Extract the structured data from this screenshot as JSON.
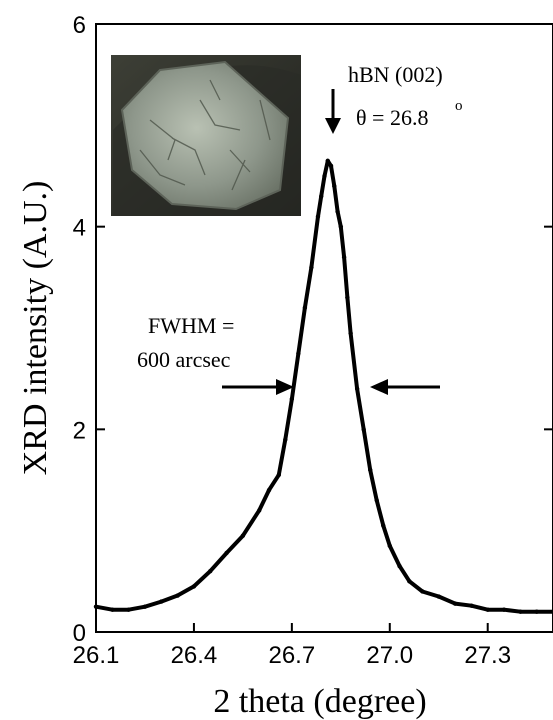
{
  "chart_data": {
    "type": "line",
    "title": "",
    "xlabel": "2 theta (degree)",
    "ylabel": "XRD intensity (A.U.)",
    "xlim": [
      26.1,
      27.5
    ],
    "ylim": [
      0,
      6
    ],
    "xticks": [
      "26.1",
      "26.4",
      "26.7",
      "27.0",
      "27.3"
    ],
    "yticks": [
      "0",
      "2",
      "4",
      "6"
    ],
    "grid": false,
    "legend": "none",
    "series": [
      {
        "color": "#000000",
        "x": [
          26.1,
          26.15,
          26.2,
          26.25,
          26.3,
          26.35,
          26.4,
          26.45,
          26.5,
          26.55,
          26.6,
          26.63,
          26.66,
          26.68,
          26.7,
          26.72,
          26.74,
          26.76,
          26.78,
          26.79,
          26.8,
          26.81,
          26.82,
          26.83,
          26.84,
          26.85,
          26.86,
          26.87,
          26.88,
          26.9,
          26.92,
          26.94,
          26.96,
          26.98,
          27.0,
          27.03,
          27.06,
          27.1,
          27.15,
          27.2,
          27.25,
          27.3,
          27.35,
          27.4,
          27.45,
          27.5
        ],
        "values": [
          0.25,
          0.22,
          0.22,
          0.25,
          0.3,
          0.36,
          0.45,
          0.6,
          0.78,
          0.95,
          1.2,
          1.4,
          1.55,
          1.9,
          2.3,
          2.75,
          3.2,
          3.6,
          4.1,
          4.3,
          4.5,
          4.65,
          4.6,
          4.4,
          4.15,
          4.0,
          3.7,
          3.3,
          2.95,
          2.4,
          2.0,
          1.6,
          1.3,
          1.05,
          0.85,
          0.65,
          0.5,
          0.4,
          0.35,
          0.28,
          0.26,
          0.22,
          0.22,
          0.2,
          0.2,
          0.2
        ]
      }
    ],
    "annotations": {
      "peak_label": "hBN (002)",
      "theta_label": "θ = 26.8",
      "theta_superscript": "o",
      "fwhm_line1": "FWHM =",
      "fwhm_line2": "600 arcsec"
    }
  }
}
